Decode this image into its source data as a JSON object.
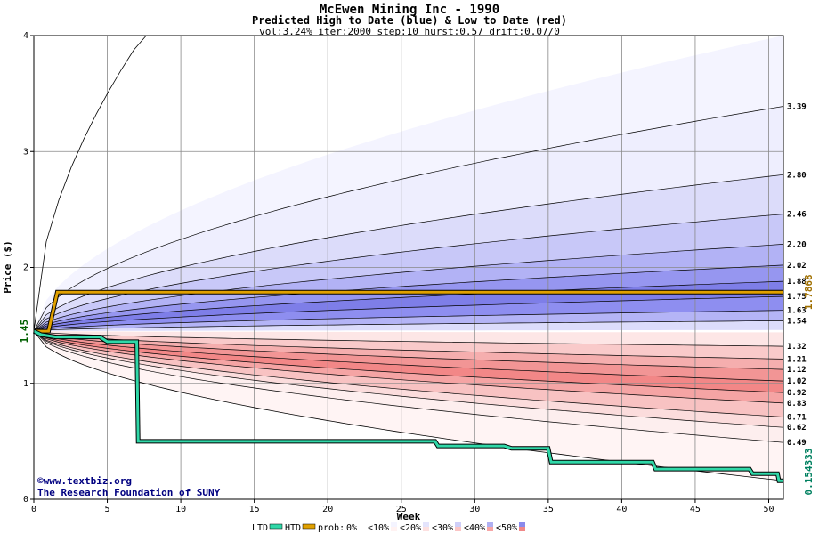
{
  "header": {
    "title": "McEwen Mining Inc - 1990",
    "subtitle": "Predicted High to Date (blue) &  Low to Date (red)",
    "params": "vol:3.24% iter:2000 step:10 hurst:0.57 drift:0.07/0"
  },
  "credits": {
    "url": "©www.textbiz.org",
    "org": "The Research Foundation of SUNY"
  },
  "chart_data": {
    "type": "area",
    "xlabel": "Week",
    "ylabel": "Price ($)",
    "xlim": [
      0,
      51
    ],
    "ylim": [
      0,
      4
    ],
    "x_ticks": [
      0,
      5,
      10,
      15,
      20,
      25,
      30,
      35,
      40,
      45,
      50
    ],
    "y_ticks": [
      0,
      1,
      2,
      3,
      4
    ],
    "start_price": 1.45,
    "start_price_label": "1.45",
    "current_price": 1.7868,
    "current_price_label": "1.7868",
    "min_ltd": 0.154333,
    "min_ltd_label": "0.154333",
    "right_labels": [
      "3.39",
      "2.80",
      "2.46",
      "2.20",
      "2.02",
      "1.88",
      "1.75",
      "1.63",
      "1.54",
      "1.32",
      "1.21",
      "1.12",
      "1.02",
      "0.92",
      "0.83",
      "0.71",
      "0.62",
      "0.49"
    ],
    "upper_quantiles": [
      {
        "end": 3.39,
        "fill": "#eeeefe"
      },
      {
        "end": 2.8,
        "fill": "#dcdcfa"
      },
      {
        "end": 2.46,
        "fill": "#c8c8f8"
      },
      {
        "end": 2.2,
        "fill": "#b2b2f5"
      },
      {
        "end": 2.02,
        "fill": "#9696f0"
      },
      {
        "end": 1.88,
        "fill": "#7e7ee8"
      },
      {
        "end": 1.75,
        "fill": "#8e8ef0"
      },
      {
        "end": 1.63,
        "fill": "#b4b4f6"
      },
      {
        "end": 1.54,
        "fill": "#dcdcfb"
      }
    ],
    "lower_quantiles": [
      {
        "end": 1.32,
        "fill": "#fde6e6"
      },
      {
        "end": 1.21,
        "fill": "#f9caca"
      },
      {
        "end": 1.12,
        "fill": "#f5aeae"
      },
      {
        "end": 1.02,
        "fill": "#f29595"
      },
      {
        "end": 0.92,
        "fill": "#f28787"
      },
      {
        "end": 0.83,
        "fill": "#f5a4a4"
      },
      {
        "end": 0.71,
        "fill": "#f8c2c2"
      },
      {
        "end": 0.62,
        "fill": "#fbdcdc"
      },
      {
        "end": 0.49,
        "fill": "#fdeeee"
      }
    ],
    "outer_upper_end": 4.0,
    "outer_lower_end": 0.16,
    "htd_series": {
      "name": "HTD",
      "color": "#e0a000",
      "points": [
        [
          0,
          1.45
        ],
        [
          1,
          1.45
        ],
        [
          1.6,
          1.7868
        ],
        [
          51,
          1.7868
        ]
      ]
    },
    "ltd_series": {
      "name": "LTD",
      "color": "#30d8a8",
      "points": [
        [
          0,
          1.45
        ],
        [
          0.5,
          1.42
        ],
        [
          1.5,
          1.4
        ],
        [
          4.5,
          1.4
        ],
        [
          5,
          1.36
        ],
        [
          7,
          1.36
        ],
        [
          7.1,
          0.5
        ],
        [
          27.3,
          0.5
        ],
        [
          27.5,
          0.46
        ],
        [
          32,
          0.46
        ],
        [
          32.5,
          0.44
        ],
        [
          35,
          0.44
        ],
        [
          35.2,
          0.32
        ],
        [
          42.1,
          0.32
        ],
        [
          42.3,
          0.26
        ],
        [
          48.7,
          0.26
        ],
        [
          48.9,
          0.22
        ],
        [
          50.6,
          0.22
        ],
        [
          50.7,
          0.16
        ],
        [
          51,
          0.16
        ]
      ]
    },
    "legend": {
      "ltd": "LTD",
      "htd": "HTD",
      "prob": "prob:",
      "bins": [
        "0%",
        "<10%",
        "<20%",
        "<30%",
        "<40%",
        "<50%"
      ],
      "bin_colors": [
        "#ffffff",
        "#f4f4ff",
        "#e4e4fc",
        "#cfcff8",
        "#b0b0f2",
        "#8a8aec"
      ],
      "bin_colors_red": [
        "#ffffff",
        "#fff2f2",
        "#fde0e0",
        "#fac4c4",
        "#f6a6a6",
        "#f08888"
      ]
    }
  }
}
